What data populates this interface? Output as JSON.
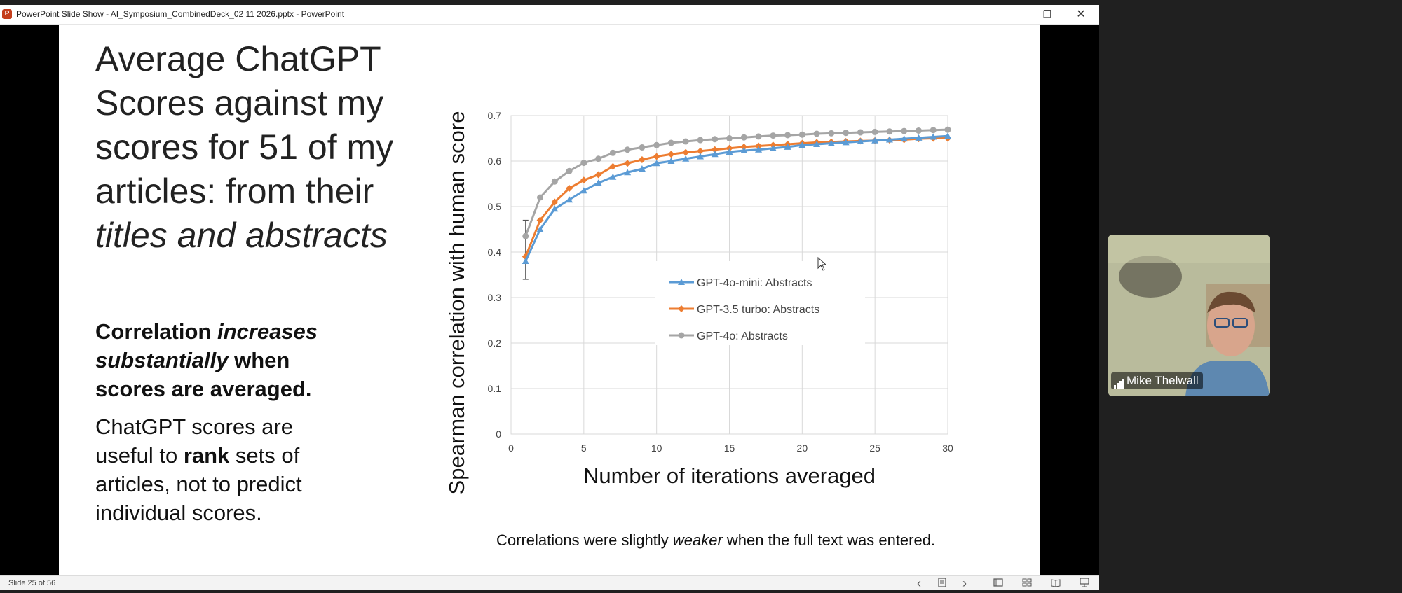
{
  "window": {
    "title": "PowerPoint Slide Show  -  AI_Symposium_CombinedDeck_02 11 2026.pptx - PowerPoint",
    "logo_letter": "P",
    "minimize_glyph": "—",
    "restore_glyph": "❐",
    "close_glyph": "✕"
  },
  "slide": {
    "title_plain": "Average ChatGPT Scores against my scores for 51 of my articles: from their ",
    "title_italic": "titles and abstracts",
    "bold_note": {
      "part1": "Correlation ",
      "part2_italic": "increases substantially",
      "part3": " when scores are averaged."
    },
    "plain_note": {
      "part1": "ChatGPT scores are useful to ",
      "part2_bold": "rank",
      "part3": " sets of articles, not to predict individual scores."
    },
    "footer": {
      "part1": "Correlations were slightly ",
      "part2_italic": "weaker",
      "part3": " when the full text was entered."
    }
  },
  "chart_data": {
    "type": "line",
    "xlabel": "Number of iterations averaged",
    "ylabel": "Spearman correlation with human score",
    "xlim": [
      0,
      30
    ],
    "ylim": [
      0,
      0.7
    ],
    "xticks": [
      0,
      5,
      10,
      15,
      20,
      25,
      30
    ],
    "yticks": [
      0,
      0.1,
      0.2,
      0.3,
      0.4,
      0.5,
      0.6,
      0.7
    ],
    "grid": true,
    "legend_position": "bottom-right",
    "x": [
      1,
      2,
      3,
      4,
      5,
      6,
      7,
      8,
      9,
      10,
      11,
      12,
      13,
      14,
      15,
      16,
      17,
      18,
      19,
      20,
      21,
      22,
      23,
      24,
      25,
      26,
      27,
      28,
      29,
      30
    ],
    "series": [
      {
        "name": "GPT-4o-mini: Abstracts",
        "color": "#5b9bd5",
        "marker": "triangle",
        "values": [
          0.38,
          0.45,
          0.495,
          0.515,
          0.535,
          0.552,
          0.565,
          0.575,
          0.583,
          0.595,
          0.6,
          0.605,
          0.61,
          0.615,
          0.62,
          0.623,
          0.625,
          0.628,
          0.631,
          0.635,
          0.637,
          0.639,
          0.641,
          0.643,
          0.645,
          0.647,
          0.649,
          0.651,
          0.653,
          0.655
        ]
      },
      {
        "name": "GPT-3.5 turbo: Abstracts",
        "color": "#ed7d31",
        "marker": "diamond",
        "values": [
          0.39,
          0.47,
          0.51,
          0.54,
          0.558,
          0.57,
          0.588,
          0.595,
          0.603,
          0.61,
          0.615,
          0.619,
          0.622,
          0.625,
          0.628,
          0.631,
          0.633,
          0.635,
          0.637,
          0.639,
          0.641,
          0.642,
          0.643,
          0.644,
          0.645,
          0.646,
          0.647,
          0.649,
          0.65,
          0.65
        ]
      },
      {
        "name": "GPT-4o: Abstracts",
        "color": "#a5a5a5",
        "marker": "circle",
        "values": [
          0.435,
          0.52,
          0.555,
          0.578,
          0.596,
          0.605,
          0.618,
          0.625,
          0.63,
          0.635,
          0.64,
          0.643,
          0.646,
          0.648,
          0.65,
          0.652,
          0.654,
          0.656,
          0.657,
          0.658,
          0.66,
          0.661,
          0.662,
          0.663,
          0.664,
          0.665,
          0.666,
          0.667,
          0.668,
          0.669
        ]
      }
    ],
    "error_bar_at_x1": {
      "low": 0.34,
      "high": 0.47
    }
  },
  "statusbar": {
    "slide_counter": "Slide 25 of 56",
    "prev_glyph": "‹",
    "next_glyph": "›"
  },
  "video": {
    "participant_name": "Mike Thelwall"
  }
}
